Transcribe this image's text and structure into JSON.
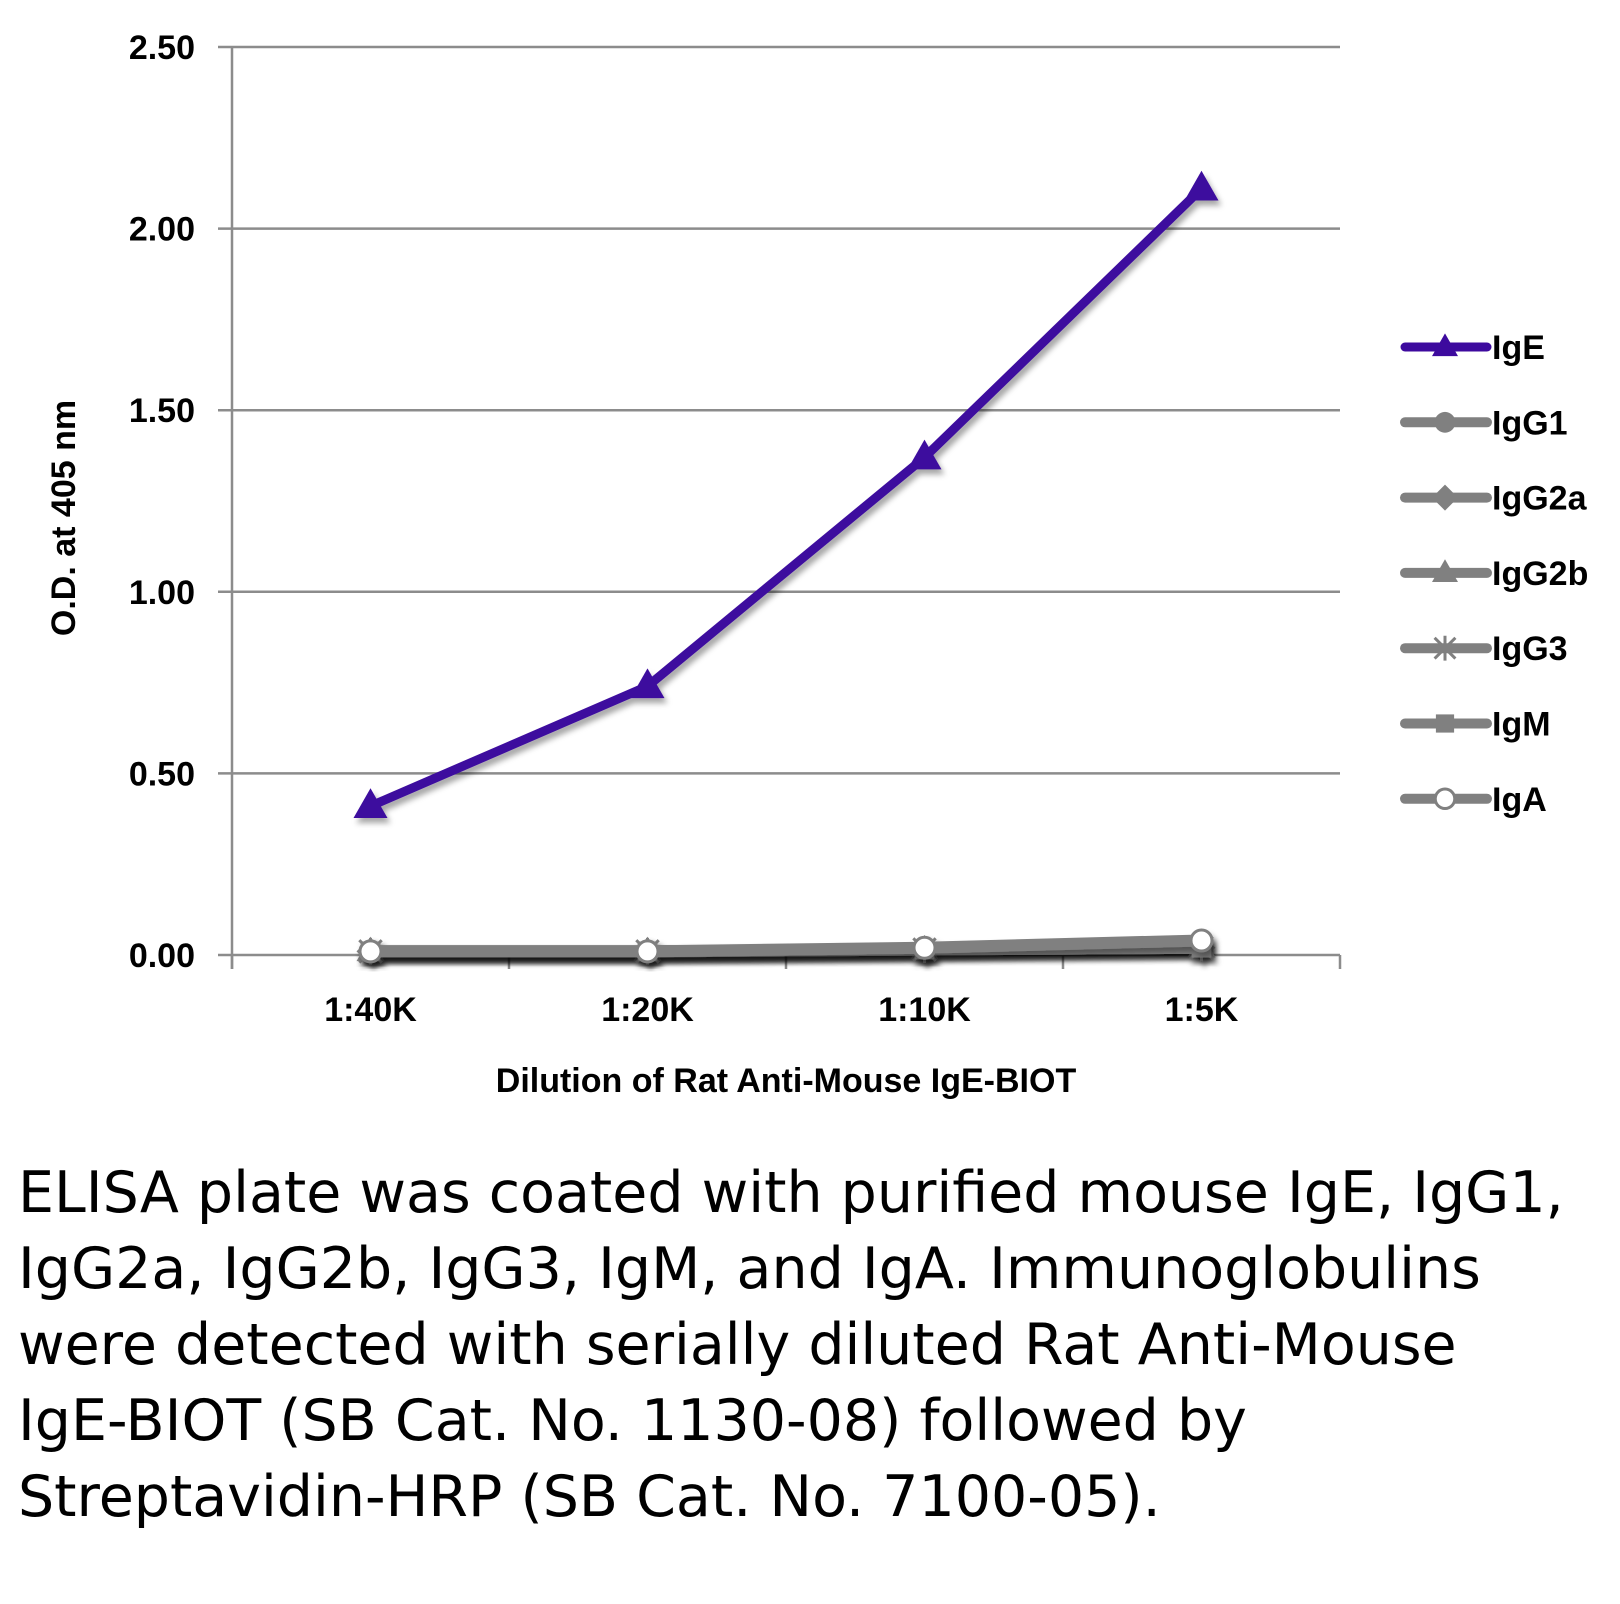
{
  "chart_data": {
    "type": "line",
    "title": "",
    "xlabel": "Dilution of Rat Anti-Mouse IgE-BIOT",
    "ylabel": "O.D. at 405 nm",
    "categories": [
      "1:40K",
      "1:20K",
      "1:10K",
      "1:5K"
    ],
    "ylim": [
      0,
      2.5
    ],
    "yticks": [
      "0.00",
      "0.50",
      "1.00",
      "1.50",
      "2.00",
      "2.50"
    ],
    "grid": "horizontal",
    "legend_position": "right",
    "series": [
      {
        "name": "IgE",
        "values": [
          0.41,
          0.74,
          1.37,
          2.11
        ],
        "color": "#3d0a9e",
        "marker": "triangle"
      },
      {
        "name": "IgG1",
        "values": [
          0.01,
          0.01,
          0.015,
          0.03
        ],
        "color": "#808080",
        "marker": "circle"
      },
      {
        "name": "IgG2a",
        "values": [
          0.01,
          0.01,
          0.015,
          0.02
        ],
        "color": "#808080",
        "marker": "diamond"
      },
      {
        "name": "IgG2b",
        "values": [
          0.01,
          0.01,
          0.015,
          0.02
        ],
        "color": "#808080",
        "marker": "triangle"
      },
      {
        "name": "IgG3",
        "values": [
          0.01,
          0.01,
          0.015,
          0.02
        ],
        "color": "#808080",
        "marker": "star"
      },
      {
        "name": "IgM",
        "values": [
          0.01,
          0.01,
          0.015,
          0.02
        ],
        "color": "#808080",
        "marker": "square"
      },
      {
        "name": "IgA",
        "values": [
          0.01,
          0.01,
          0.02,
          0.04
        ],
        "color": "#808080",
        "marker": "open-circle"
      }
    ]
  },
  "caption": "ELISA plate was coated with purified mouse IgE, IgG1, IgG2a, IgG2b, IgG3, IgM, and IgA.  Immunoglobulins were detected with serially diluted Rat Anti-Mouse IgE-BIOT (SB Cat. No. 1130-08) followed by Streptavidin-HRP (SB Cat. No. 7100-05)."
}
